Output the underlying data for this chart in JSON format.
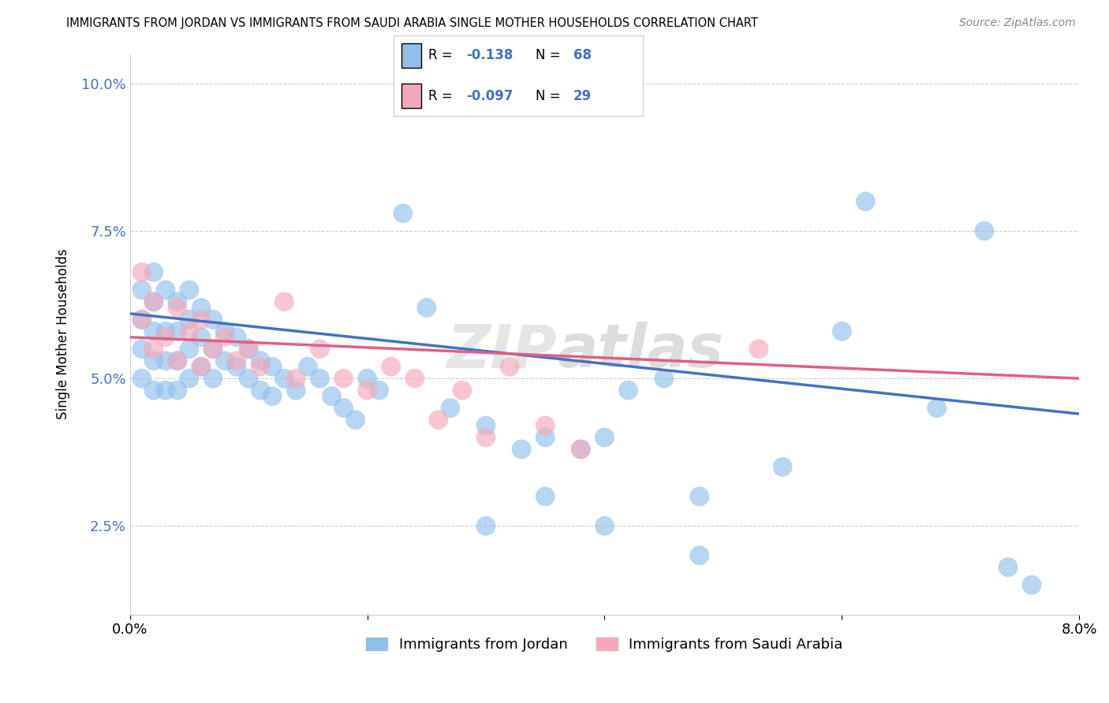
{
  "title": "IMMIGRANTS FROM JORDAN VS IMMIGRANTS FROM SAUDI ARABIA SINGLE MOTHER HOUSEHOLDS CORRELATION CHART",
  "source": "Source: ZipAtlas.com",
  "ylabel": "Single Mother Households",
  "xlim": [
    0.0,
    0.08
  ],
  "ylim": [
    0.01,
    0.105
  ],
  "yticks": [
    0.025,
    0.05,
    0.075,
    0.1
  ],
  "ytick_labels": [
    "2.5%",
    "5.0%",
    "7.5%",
    "10.0%"
  ],
  "legend_jordan": "Immigrants from Jordan",
  "legend_saudi": "Immigrants from Saudi Arabia",
  "R_jordan": -0.138,
  "N_jordan": 68,
  "R_saudi": -0.097,
  "N_saudi": 29,
  "jordan_color": "#90C0EA",
  "saudi_color": "#F5A8BC",
  "jordan_line_color": "#4472C4",
  "saudi_line_color": "#E06080",
  "background_color": "#FFFFFF",
  "watermark": "ZIPAtlas",
  "jordan_line_start_y": 0.061,
  "jordan_line_end_y": 0.044,
  "saudi_line_start_y": 0.057,
  "saudi_line_end_y": 0.05,
  "jordan_x": [
    0.001,
    0.001,
    0.001,
    0.001,
    0.002,
    0.002,
    0.002,
    0.002,
    0.002,
    0.003,
    0.003,
    0.003,
    0.003,
    0.004,
    0.004,
    0.004,
    0.004,
    0.005,
    0.005,
    0.005,
    0.005,
    0.006,
    0.006,
    0.006,
    0.007,
    0.007,
    0.007,
    0.008,
    0.008,
    0.009,
    0.009,
    0.01,
    0.01,
    0.011,
    0.011,
    0.012,
    0.012,
    0.013,
    0.014,
    0.015,
    0.016,
    0.017,
    0.018,
    0.019,
    0.02,
    0.021,
    0.023,
    0.025,
    0.027,
    0.03,
    0.033,
    0.035,
    0.038,
    0.04,
    0.042,
    0.045,
    0.048,
    0.03,
    0.035,
    0.04,
    0.048,
    0.055,
    0.06,
    0.062,
    0.068,
    0.072,
    0.074,
    0.076
  ],
  "jordan_y": [
    0.065,
    0.06,
    0.055,
    0.05,
    0.068,
    0.063,
    0.058,
    0.053,
    0.048,
    0.065,
    0.058,
    0.053,
    0.048,
    0.063,
    0.058,
    0.053,
    0.048,
    0.065,
    0.06,
    0.055,
    0.05,
    0.062,
    0.057,
    0.052,
    0.06,
    0.055,
    0.05,
    0.058,
    0.053,
    0.057,
    0.052,
    0.055,
    0.05,
    0.053,
    0.048,
    0.052,
    0.047,
    0.05,
    0.048,
    0.052,
    0.05,
    0.047,
    0.045,
    0.043,
    0.05,
    0.048,
    0.078,
    0.062,
    0.045,
    0.042,
    0.038,
    0.04,
    0.038,
    0.04,
    0.048,
    0.05,
    0.03,
    0.025,
    0.03,
    0.025,
    0.02,
    0.035,
    0.058,
    0.08,
    0.045,
    0.075,
    0.018,
    0.015
  ],
  "saudi_x": [
    0.001,
    0.001,
    0.002,
    0.002,
    0.003,
    0.004,
    0.004,
    0.005,
    0.006,
    0.006,
    0.007,
    0.008,
    0.009,
    0.01,
    0.011,
    0.013,
    0.014,
    0.016,
    0.018,
    0.02,
    0.022,
    0.024,
    0.026,
    0.028,
    0.032,
    0.035,
    0.038,
    0.053,
    0.03
  ],
  "saudi_y": [
    0.068,
    0.06,
    0.063,
    0.055,
    0.057,
    0.062,
    0.053,
    0.058,
    0.06,
    0.052,
    0.055,
    0.057,
    0.053,
    0.055,
    0.052,
    0.063,
    0.05,
    0.055,
    0.05,
    0.048,
    0.052,
    0.05,
    0.043,
    0.048,
    0.052,
    0.042,
    0.038,
    0.055,
    0.04
  ]
}
